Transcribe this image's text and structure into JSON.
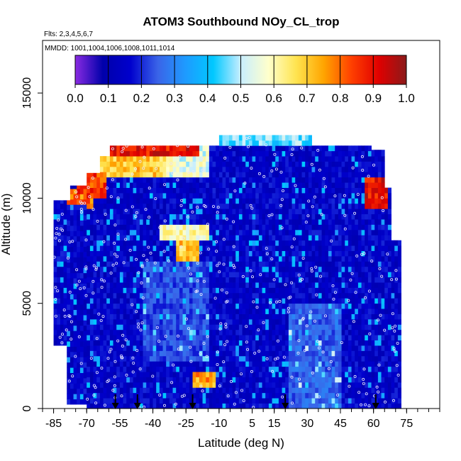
{
  "chart_data": {
    "type": "heatmap",
    "title": "ATOM3 Southbound NOy_CL_trop",
    "subtitle_flights": "Flts: 2,3,4,5,6,7",
    "subtitle_dates": "MMDD: 1001,1004,1006,1008,1011,1014",
    "xlabel": "Latitude (deg N)",
    "ylabel": "Altitude (m)",
    "xlim": [
      -90,
      90
    ],
    "ylim": [
      0,
      17500
    ],
    "x_ticks": [
      -85,
      -70,
      -55,
      -40,
      -25,
      -10,
      5,
      15,
      30,
      45,
      60,
      75
    ],
    "x_tick_labels": [
      "-85",
      "-70",
      "-55",
      "-40",
      "-25",
      "-10",
      "5",
      "15",
      "30",
      "45",
      "60",
      "75"
    ],
    "y_ticks": [
      0,
      5000,
      10000,
      15000
    ],
    "y_tick_labels": [
      "0",
      "5000",
      "10000",
      "15000"
    ],
    "colorbar": {
      "range": [
        0.0,
        1.0
      ],
      "tick_labels": [
        "0.0",
        "0.1",
        "0.2",
        "0.3",
        "0.4",
        "0.5",
        "0.6",
        "0.7",
        "0.8",
        "0.9",
        "1.0"
      ],
      "colors": [
        "#8a2be2",
        "#0000aa",
        "#0000cd",
        "#3a64e8",
        "#1e9bff",
        "#00c8ff",
        "#c8eeff",
        "#ffffcc",
        "#ffe450",
        "#ffa500",
        "#ff4000",
        "#e00000",
        "#8b1a1a"
      ]
    },
    "data_extent": {
      "lat_min": -85,
      "lat_max": 72,
      "alt_min": 0,
      "alt_max": 13000
    },
    "flight_arrows_lat": [
      -57,
      -47,
      -22,
      20,
      61
    ],
    "high_value_regions": [
      {
        "lat": [
          -75,
          -20
        ],
        "alt": [
          11800,
          12500
        ],
        "value": 0.9
      },
      {
        "lat": [
          -66,
          -35
        ],
        "alt": [
          11000,
          11900
        ],
        "value": 0.7
      },
      {
        "lat": [
          -36,
          -15
        ],
        "alt": [
          11000,
          12500
        ],
        "value": 0.55
      },
      {
        "lat": [
          -75,
          -62
        ],
        "alt": [
          10000,
          11000
        ],
        "value": 0.85
      },
      {
        "lat": [
          -30,
          -20
        ],
        "alt": [
          6800,
          7800
        ],
        "value": 0.7
      },
      {
        "lat": [
          -37,
          -16
        ],
        "alt": [
          7800,
          8500
        ],
        "value": 0.6
      },
      {
        "lat": [
          -23,
          -13
        ],
        "alt": [
          1000,
          1500
        ],
        "value": 0.75
      },
      {
        "lat": [
          55,
          65
        ],
        "alt": [
          9500,
          10800
        ],
        "value": 0.9
      },
      {
        "lat": [
          -80,
          -68
        ],
        "alt": [
          9500,
          10200
        ],
        "value": 0.8
      },
      {
        "lat": [
          -10,
          32
        ],
        "alt": [
          12500,
          13000
        ],
        "value": 0.45
      }
    ]
  }
}
